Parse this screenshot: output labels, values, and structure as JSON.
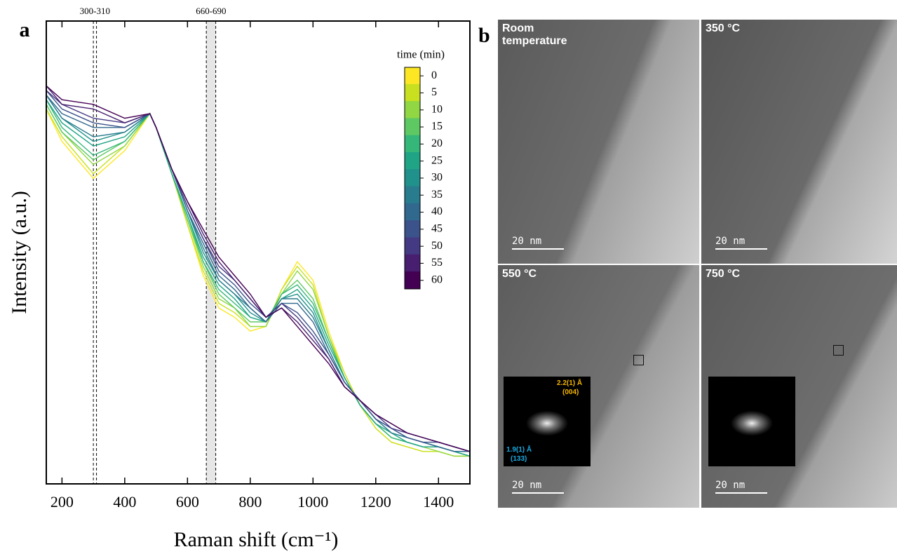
{
  "chart_data": {
    "type": "line",
    "panel_label": "a",
    "x_label": "Raman shift (cm⁻¹)",
    "y_label": "Intensity (a.u.)",
    "xlim": [
      150,
      1500
    ],
    "xticks": [
      200,
      400,
      600,
      800,
      1000,
      1200,
      1400
    ],
    "ylim": [
      0,
      100
    ],
    "bands": [
      {
        "label": "300-310",
        "range": [
          300,
          310
        ],
        "shaded": false
      },
      {
        "label": "660-690",
        "range": [
          660,
          690
        ],
        "shaded": true
      }
    ],
    "legend_title": "time (min)",
    "x": [
      150,
      200,
      300,
      400,
      480,
      500,
      550,
      600,
      650,
      700,
      750,
      800,
      850,
      900,
      950,
      1000,
      1050,
      1100,
      1150,
      1200,
      1250,
      1300,
      1350,
      1400,
      1450,
      1500
    ],
    "series": [
      {
        "name": "0",
        "color": "#fde725",
        "values": [
          81,
          74,
          66,
          72,
          80,
          77,
          67,
          56,
          45,
          38,
          36,
          33,
          34,
          42,
          48,
          44,
          33,
          24,
          17,
          12,
          9,
          8,
          7,
          7,
          6,
          6
        ]
      },
      {
        "name": "5",
        "color": "#c8e020",
        "values": [
          81,
          75,
          67,
          73,
          80,
          77,
          67,
          56,
          46,
          39,
          37,
          34,
          34,
          42,
          47,
          43,
          32,
          24,
          17,
          12,
          9,
          8,
          7,
          7,
          6,
          6
        ]
      },
      {
        "name": "10",
        "color": "#90d743",
        "values": [
          82,
          76,
          69,
          73,
          80,
          77,
          67,
          57,
          47,
          40,
          38,
          34,
          34,
          41,
          46,
          42,
          32,
          23,
          17,
          13,
          10,
          9,
          8,
          7,
          6,
          6
        ]
      },
      {
        "name": "15",
        "color": "#5ec962",
        "values": [
          82,
          76,
          70,
          74,
          80,
          77,
          67,
          57,
          48,
          41,
          38,
          35,
          35,
          41,
          44,
          40,
          31,
          23,
          17,
          13,
          10,
          9,
          8,
          8,
          7,
          6
        ]
      },
      {
        "name": "20",
        "color": "#35b779",
        "values": [
          83,
          77,
          71,
          74,
          80,
          77,
          67,
          58,
          48,
          42,
          39,
          36,
          35,
          41,
          43,
          39,
          31,
          23,
          17,
          13,
          10,
          9,
          8,
          8,
          7,
          6
        ]
      },
      {
        "name": "25",
        "color": "#20a486",
        "values": [
          83,
          78,
          73,
          75,
          80,
          77,
          67,
          58,
          49,
          43,
          40,
          36,
          35,
          40,
          42,
          38,
          30,
          23,
          17,
          13,
          11,
          9,
          8,
          8,
          7,
          6
        ]
      },
      {
        "name": "30",
        "color": "#21918c",
        "values": [
          84,
          79,
          74,
          76,
          80,
          77,
          68,
          59,
          50,
          44,
          41,
          37,
          35,
          40,
          41,
          37,
          29,
          22,
          18,
          14,
          11,
          10,
          9,
          8,
          7,
          7
        ]
      },
      {
        "name": "35",
        "color": "#287c8e",
        "values": [
          84,
          79,
          75,
          76,
          80,
          77,
          68,
          59,
          51,
          44,
          41,
          38,
          35,
          40,
          40,
          36,
          29,
          22,
          18,
          14,
          11,
          10,
          9,
          8,
          7,
          7
        ]
      },
      {
        "name": "40",
        "color": "#31688e",
        "values": [
          84,
          80,
          77,
          77,
          80,
          77,
          68,
          59,
          52,
          45,
          42,
          38,
          35,
          39,
          39,
          35,
          28,
          22,
          18,
          14,
          12,
          10,
          9,
          8,
          7,
          7
        ]
      },
      {
        "name": "45",
        "color": "#3b528b",
        "values": [
          85,
          81,
          78,
          77,
          80,
          77,
          68,
          60,
          53,
          46,
          43,
          39,
          36,
          39,
          37,
          33,
          28,
          22,
          18,
          14,
          12,
          10,
          9,
          9,
          8,
          7
        ]
      },
      {
        "name": "50",
        "color": "#443983",
        "values": [
          85,
          82,
          79,
          78,
          80,
          77,
          68,
          60,
          53,
          47,
          44,
          40,
          36,
          39,
          36,
          32,
          27,
          21,
          18,
          15,
          12,
          11,
          10,
          9,
          8,
          7
        ]
      },
      {
        "name": "55",
        "color": "#481f70",
        "values": [
          86,
          82,
          81,
          78,
          80,
          77,
          68,
          61,
          54,
          48,
          44,
          40,
          36,
          38,
          35,
          31,
          27,
          21,
          18,
          15,
          13,
          11,
          10,
          9,
          8,
          7
        ]
      },
      {
        "name": "60",
        "color": "#440154",
        "values": [
          86,
          83,
          82,
          79,
          80,
          77,
          68,
          61,
          55,
          49,
          45,
          41,
          36,
          38,
          34,
          30,
          26,
          21,
          18,
          15,
          13,
          11,
          10,
          9,
          8,
          7
        ]
      }
    ]
  },
  "panel_b": {
    "label": "b",
    "images": [
      {
        "label": "Room temperature",
        "scale_bar": "20 nm"
      },
      {
        "label": "350 °C",
        "scale_bar": "20 nm"
      },
      {
        "label": "550 °C",
        "scale_bar": "20 nm",
        "inset": [
          {
            "text": "2.2(1) Å",
            "plane": "(004)"
          },
          {
            "text": "1.9(1) Å",
            "plane": "(133)"
          }
        ]
      },
      {
        "label": "750 °C",
        "scale_bar": "20 nm"
      }
    ]
  }
}
